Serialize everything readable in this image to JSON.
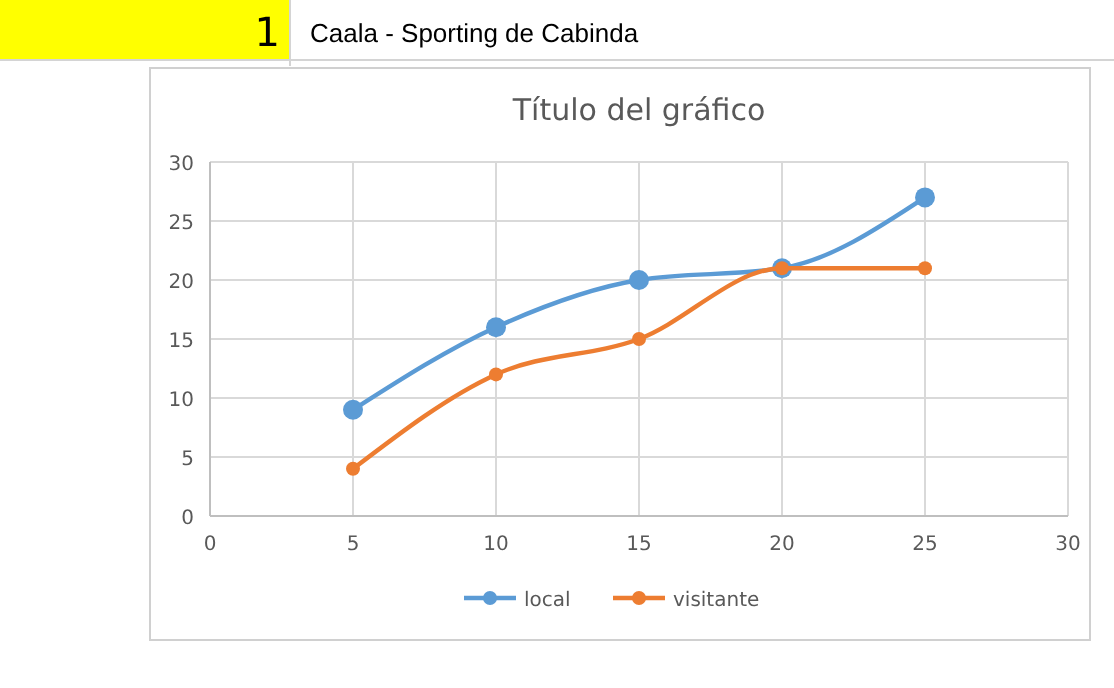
{
  "chart_data": {
    "type": "line",
    "title": "Título del gráfico",
    "annotations": [
      "1",
      "Caala - Sporting de Cabinda"
    ],
    "x": [
      5,
      10,
      15,
      20,
      25
    ],
    "series": [
      {
        "name": "local",
        "color": "#5b9bd5",
        "values": [
          9,
          16,
          20,
          21,
          27
        ]
      },
      {
        "name": "visitante",
        "color": "#ed7d31",
        "values": [
          4,
          12,
          15,
          21,
          21
        ]
      }
    ],
    "xlim": [
      0,
      30
    ],
    "xticks": [
      0,
      5,
      10,
      15,
      20,
      25,
      30
    ],
    "ylim": [
      0,
      30
    ],
    "yticks": [
      0,
      5,
      10,
      15,
      20,
      25,
      30
    ],
    "grid": true,
    "legend": "bottom",
    "marker": "circle",
    "line_style": "solid"
  }
}
